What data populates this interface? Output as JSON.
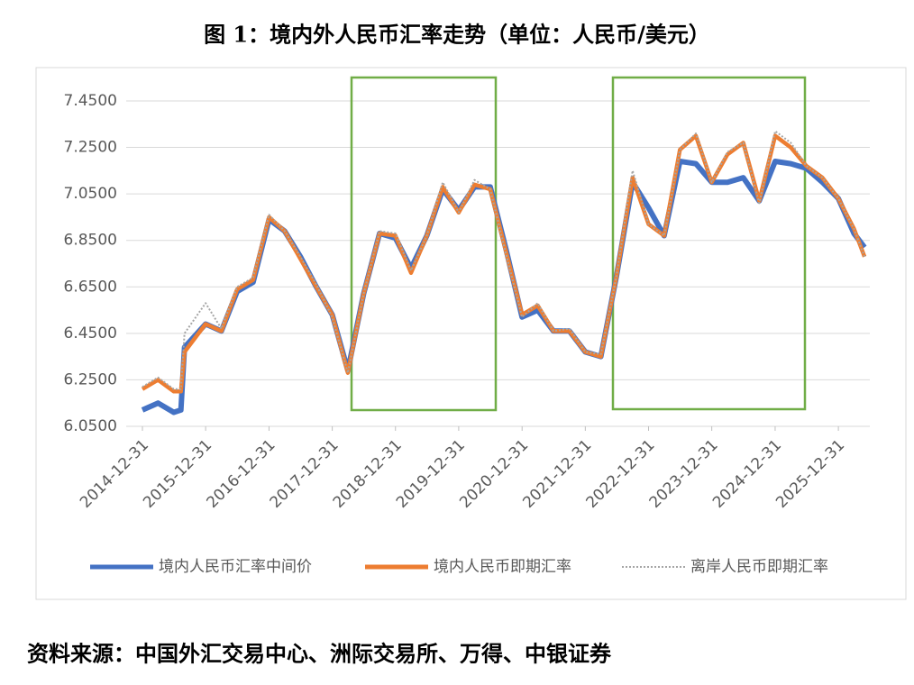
{
  "chart_data": {
    "type": "line",
    "title": "图 1：境内外人民币汇率走势（单位：人民币/美元）",
    "source": "资料来源：中国外汇交易中心、洲际交易所、万得、中银证券",
    "x": [
      "2014-12-31",
      "2015-03-31",
      "2015-06-30",
      "2015-08-10",
      "2015-08-31",
      "2015-12-31",
      "2016-03-31",
      "2016-06-30",
      "2016-09-30",
      "2016-12-31",
      "2017-03-31",
      "2017-06-30",
      "2017-09-30",
      "2017-12-31",
      "2018-03-31",
      "2018-06-30",
      "2018-09-30",
      "2018-12-31",
      "2019-03-31",
      "2019-06-30",
      "2019-09-30",
      "2019-12-31",
      "2020-03-31",
      "2020-06-30",
      "2020-09-30",
      "2020-12-31",
      "2021-03-31",
      "2021-06-30",
      "2021-09-30",
      "2021-12-31",
      "2022-03-31",
      "2022-06-30",
      "2022-09-30",
      "2022-12-31",
      "2023-03-31",
      "2023-06-30",
      "2023-09-30",
      "2023-12-31",
      "2024-03-31",
      "2024-06-30",
      "2024-09-30",
      "2024-12-31",
      "2025-03-31",
      "2025-06-30",
      "2025-09-30",
      "2025-12-31",
      "2026-03-31",
      "2026-05-31"
    ],
    "series": [
      {
        "name": "境内人民币汇率中间价",
        "color": "#4472c4",
        "style": "solid",
        "values": [
          6.12,
          6.15,
          6.11,
          6.12,
          6.39,
          6.49,
          6.46,
          6.63,
          6.67,
          6.94,
          6.89,
          6.78,
          6.65,
          6.53,
          6.29,
          6.62,
          6.88,
          6.86,
          6.73,
          6.87,
          7.07,
          6.98,
          7.08,
          7.08,
          6.81,
          6.52,
          6.55,
          6.46,
          6.46,
          6.37,
          6.35,
          6.7,
          7.1,
          6.99,
          6.87,
          7.19,
          7.18,
          7.1,
          7.1,
          7.12,
          7.02,
          7.19,
          7.18,
          7.16,
          7.1,
          7.03,
          6.88,
          6.82
        ]
      },
      {
        "name": "境内人民币即期汇率",
        "color": "#ed7d31",
        "style": "solid",
        "values": [
          6.21,
          6.25,
          6.2,
          6.2,
          6.37,
          6.49,
          6.46,
          6.64,
          6.68,
          6.95,
          6.89,
          6.77,
          6.65,
          6.53,
          6.28,
          6.62,
          6.88,
          6.87,
          6.71,
          6.87,
          7.08,
          6.97,
          7.09,
          7.07,
          6.8,
          6.53,
          6.57,
          6.46,
          6.46,
          6.37,
          6.35,
          6.7,
          7.12,
          6.92,
          6.87,
          7.24,
          7.3,
          7.1,
          7.22,
          7.27,
          7.02,
          7.3,
          7.25,
          7.17,
          7.12,
          7.03,
          6.9,
          6.78
        ]
      },
      {
        "name": "离岸人民币即期汇率",
        "color": "#a5a5a5",
        "style": "dotted",
        "values": [
          6.22,
          6.26,
          6.21,
          6.21,
          6.45,
          6.58,
          6.47,
          6.65,
          6.69,
          6.96,
          6.89,
          6.78,
          6.66,
          6.52,
          6.28,
          6.62,
          6.89,
          6.88,
          6.72,
          6.87,
          7.1,
          6.97,
          7.11,
          7.07,
          6.79,
          6.52,
          6.58,
          6.46,
          6.47,
          6.37,
          6.36,
          6.7,
          7.15,
          6.92,
          6.87,
          7.24,
          7.31,
          7.1,
          7.23,
          7.27,
          7.01,
          7.32,
          7.27,
          7.17,
          7.12,
          7.03,
          6.9,
          6.78
        ]
      }
    ],
    "xlim": [
      "2014-12-31",
      "2026-06-15"
    ],
    "xticks": [
      "2014-12-31",
      "2015-12-31",
      "2016-12-31",
      "2017-12-31",
      "2018-12-31",
      "2019-12-31",
      "2020-12-31",
      "2021-12-31",
      "2022-12-31",
      "2023-12-31",
      "2024-12-31",
      "2025-12-31"
    ],
    "ylim": [
      6.05,
      7.543
    ],
    "yticks": [
      {
        "value": 6.05,
        "label": "6.0500"
      },
      {
        "value": 6.25,
        "label": "6.2500"
      },
      {
        "value": 6.45,
        "label": "6.4500"
      },
      {
        "value": 6.65,
        "label": "6.6500"
      },
      {
        "value": 6.85,
        "label": "6.8500"
      },
      {
        "value": 7.05,
        "label": "7.0500"
      },
      {
        "value": 7.25,
        "label": "7.2500"
      },
      {
        "value": 7.45,
        "label": "7.4500"
      }
    ],
    "grid": true,
    "legend": "bottom"
  }
}
